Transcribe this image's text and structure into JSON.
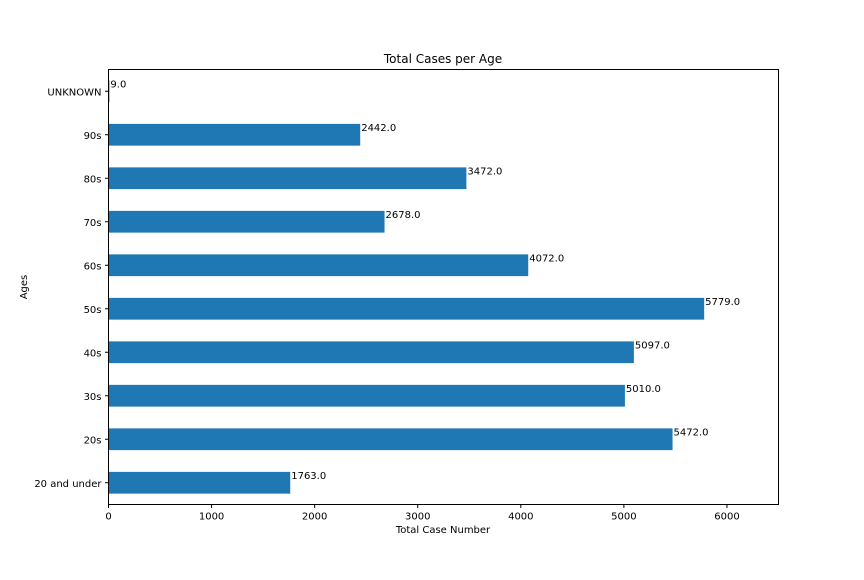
{
  "chart_data": {
    "type": "bar",
    "orientation": "horizontal",
    "title": "Total Cases per Age",
    "xlabel": "Total Case Number",
    "ylabel": "Ages",
    "categories": [
      "20 and under",
      "20s",
      "30s",
      "40s",
      "50s",
      "60s",
      "70s",
      "80s",
      "90s",
      "UNKNOWN"
    ],
    "values": [
      1763,
      5472,
      5010,
      5097,
      5779,
      4072,
      2678,
      3472,
      2442,
      9
    ],
    "value_labels": [
      "1763.0",
      "5472.0",
      "5010.0",
      "5097.0",
      "5779.0",
      "4072.0",
      "2678.0",
      "3472.0",
      "2442.0",
      "9.0"
    ],
    "xlim": [
      0,
      6500
    ],
    "xticks": [
      0,
      1000,
      2000,
      3000,
      4000,
      5000,
      6000
    ],
    "xtick_labels": [
      "0",
      "1000",
      "2000",
      "3000",
      "4000",
      "5000",
      "6000"
    ],
    "grid": false,
    "legend": false,
    "bar_color": "#1f77b4"
  }
}
